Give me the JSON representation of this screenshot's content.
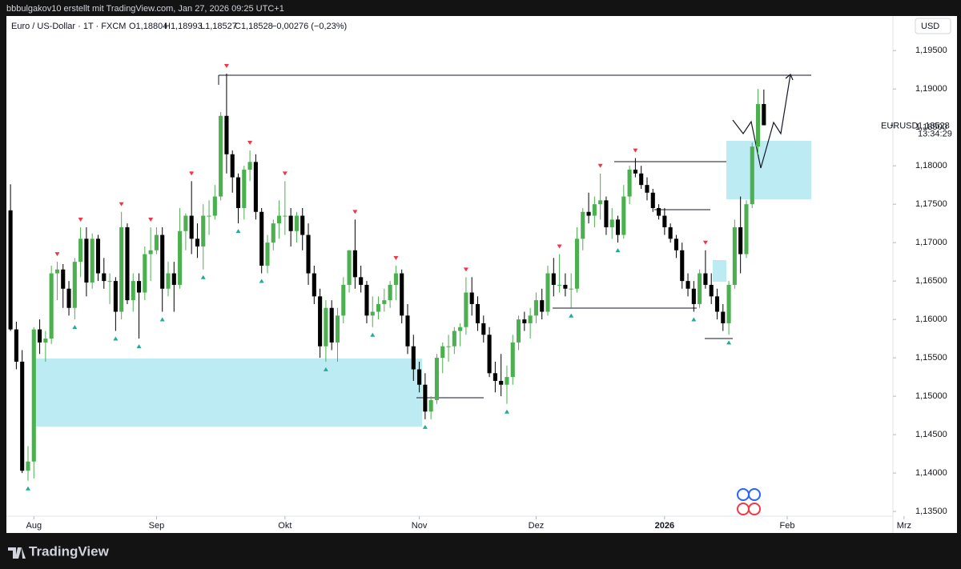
{
  "header": {
    "credit": "bbbulgakov10 erstellt mit TradingView.com, Jan 27, 2026 09:25 UTC+1",
    "symbol": "Euro / US-Dollar · 1T · FXCM",
    "ohlc": [
      "O1,18804",
      "H1,18993",
      "L1,18527",
      "C1,18528"
    ],
    "change": "−0,00276 (−0,23%)",
    "currency": "USD"
  },
  "price_tag": {
    "symbol": "EURUSD",
    "price": "1,18528",
    "countdown": "13:34:29"
  },
  "footer": {
    "brand": "TradingView"
  },
  "chart_data": {
    "type": "candlestick",
    "up_color": "#4caf50",
    "down_color": "#000000",
    "fractal_high_color": "#f23645",
    "fractal_low_color": "#22ab94",
    "xlim": [
      -0.7,
      151.1
    ],
    "xticks": [
      {
        "value": 4,
        "label": "Aug"
      },
      {
        "value": 25,
        "label": "Sep"
      },
      {
        "value": 47,
        "label": "Okt"
      },
      {
        "value": 70,
        "label": "Nov"
      },
      {
        "value": 90,
        "label": "Dez"
      },
      {
        "value": 112,
        "label": "2026"
      },
      {
        "value": 133,
        "label": "Feb"
      },
      {
        "value": 153,
        "label": "Mrz"
      }
    ],
    "ylim": [
      1.1323,
      1.1995
    ],
    "yticks": [
      {
        "value": 1.135,
        "label": "1,13500"
      },
      {
        "value": 1.14,
        "label": "1,14000"
      },
      {
        "value": 1.145,
        "label": "1,14500"
      },
      {
        "value": 1.15,
        "label": "1,15000"
      },
      {
        "value": 1.155,
        "label": "1,15500"
      },
      {
        "value": 1.16,
        "label": "1,16000"
      },
      {
        "value": 1.165,
        "label": "1,16500"
      },
      {
        "value": 1.17,
        "label": "1,17000"
      },
      {
        "value": 1.175,
        "label": "1,17500"
      },
      {
        "value": 1.18,
        "label": "1,18000"
      },
      {
        "value": 1.185,
        "label": "1,18500"
      },
      {
        "value": 1.19,
        "label": "1,19000"
      },
      {
        "value": 1.195,
        "label": "1,19500"
      }
    ],
    "open": [
      1.1742,
      1.1587,
      1.1545,
      1.1403,
      1.1415,
      1.1587,
      1.157,
      1.1575,
      1.166,
      1.1665,
      1.164,
      1.1615,
      1.1675,
      1.1705,
      1.1648,
      1.1705,
      1.166,
      1.165,
      1.165,
      1.161,
      1.172,
      1.1625,
      1.165,
      1.1635,
      1.1685,
      1.169,
      1.171,
      1.164,
      1.166,
      1.1645,
      1.1715,
      1.1735,
      1.1705,
      1.1695,
      1.1735,
      1.1735,
      1.176,
      1.1865,
      1.1815,
      1.1785,
      1.1745,
      1.1795,
      1.1805,
      1.174,
      1.167,
      1.17,
      1.1725,
      1.1735,
      1.1735,
      1.1715,
      1.1735,
      1.171,
      1.166,
      1.163,
      1.1565,
      1.1615,
      1.157,
      1.1605,
      1.1645,
      1.169,
      1.1655,
      1.1645,
      1.1605,
      1.161,
      1.162,
      1.1625,
      1.1645,
      1.166,
      1.1605,
      1.1565,
      1.1535,
      1.1515,
      1.148,
      1.1495,
      1.155,
      1.1565,
      1.1565,
      1.1585,
      1.159,
      1.1635,
      1.162,
      1.1595,
      1.158,
      1.153,
      1.152,
      1.1515,
      1.1525,
      1.157,
      1.16,
      1.1595,
      1.1605,
      1.1625,
      1.161,
      1.166,
      1.1645,
      1.1645,
      1.164,
      1.164,
      1.1705,
      1.174,
      1.1735,
      1.175,
      1.1755,
      1.172,
      1.173,
      1.171,
      1.176,
      1.1795,
      1.179,
      1.1775,
      1.1765,
      1.1745,
      1.1735,
      1.172,
      1.1705,
      1.169,
      1.165,
      1.164,
      1.162,
      1.166,
      1.1645,
      1.163,
      1.161,
      1.1595,
      1.1645,
      1.172,
      1.1685,
      1.175,
      1.1825,
      1.18804
    ],
    "high": [
      1.1776,
      1.1597,
      1.156,
      1.1435,
      1.159,
      1.16,
      1.1585,
      1.167,
      1.1675,
      1.1672,
      1.165,
      1.168,
      1.172,
      1.172,
      1.1712,
      1.171,
      1.168,
      1.166,
      1.1655,
      1.174,
      1.1725,
      1.166,
      1.166,
      1.1695,
      1.172,
      1.172,
      1.172,
      1.1675,
      1.1675,
      1.1745,
      1.1738,
      1.178,
      1.1725,
      1.175,
      1.1755,
      1.1775,
      1.187,
      1.192,
      1.182,
      1.179,
      1.18,
      1.182,
      1.1815,
      1.1745,
      1.171,
      1.173,
      1.1755,
      1.178,
      1.1745,
      1.174,
      1.1745,
      1.1725,
      1.167,
      1.164,
      1.1625,
      1.1625,
      1.1615,
      1.1655,
      1.169,
      1.173,
      1.167,
      1.165,
      1.163,
      1.163,
      1.164,
      1.165,
      1.167,
      1.1665,
      1.162,
      1.158,
      1.1545,
      1.153,
      1.15,
      1.1555,
      1.157,
      1.158,
      1.159,
      1.1595,
      1.1655,
      1.1655,
      1.163,
      1.1605,
      1.159,
      1.1545,
      1.1555,
      1.154,
      1.158,
      1.1605,
      1.161,
      1.1615,
      1.1635,
      1.164,
      1.167,
      1.168,
      1.1685,
      1.166,
      1.166,
      1.172,
      1.1745,
      1.1765,
      1.176,
      1.179,
      1.176,
      1.1745,
      1.1735,
      1.1775,
      1.18,
      1.181,
      1.18,
      1.1785,
      1.177,
      1.175,
      1.1745,
      1.1725,
      1.171,
      1.17,
      1.166,
      1.165,
      1.1665,
      1.169,
      1.166,
      1.164,
      1.162,
      1.165,
      1.173,
      1.176,
      1.1755,
      1.183,
      1.19,
      1.18993
    ],
    "low": [
      1.1585,
      1.1535,
      1.14,
      1.139,
      1.1393,
      1.1555,
      1.1545,
      1.1568,
      1.1625,
      1.1615,
      1.1605,
      1.16,
      1.1655,
      1.163,
      1.164,
      1.165,
      1.164,
      1.162,
      1.1585,
      1.16,
      1.162,
      1.161,
      1.1575,
      1.1625,
      1.165,
      1.1685,
      1.161,
      1.163,
      1.161,
      1.164,
      1.169,
      1.1685,
      1.168,
      1.1665,
      1.171,
      1.173,
      1.1755,
      1.179,
      1.1765,
      1.1725,
      1.173,
      1.178,
      1.173,
      1.166,
      1.166,
      1.169,
      1.1705,
      1.171,
      1.1695,
      1.17,
      1.169,
      1.1645,
      1.162,
      1.155,
      1.1545,
      1.156,
      1.1545,
      1.1595,
      1.1635,
      1.164,
      1.1635,
      1.1595,
      1.159,
      1.16,
      1.161,
      1.1615,
      1.1625,
      1.1595,
      1.1555,
      1.152,
      1.1505,
      1.147,
      1.147,
      1.149,
      1.153,
      1.1545,
      1.1555,
      1.1565,
      1.158,
      1.1605,
      1.1585,
      1.157,
      1.1525,
      1.1505,
      1.15,
      1.149,
      1.1515,
      1.156,
      1.1585,
      1.1575,
      1.1595,
      1.16,
      1.1605,
      1.163,
      1.1635,
      1.163,
      1.1615,
      1.1635,
      1.169,
      1.1725,
      1.172,
      1.173,
      1.171,
      1.1705,
      1.17,
      1.1705,
      1.175,
      1.1785,
      1.177,
      1.1755,
      1.174,
      1.173,
      1.171,
      1.17,
      1.168,
      1.164,
      1.163,
      1.161,
      1.1615,
      1.164,
      1.162,
      1.16,
      1.1585,
      1.158,
      1.164,
      1.166,
      1.168,
      1.1745,
      1.1815,
      1.18527
    ],
    "close": [
      1.1587,
      1.1545,
      1.1403,
      1.1415,
      1.1587,
      1.157,
      1.1575,
      1.166,
      1.1665,
      1.164,
      1.1615,
      1.1675,
      1.1705,
      1.1648,
      1.1705,
      1.166,
      1.165,
      1.165,
      1.161,
      1.172,
      1.1625,
      1.165,
      1.1635,
      1.1685,
      1.169,
      1.171,
      1.164,
      1.166,
      1.1645,
      1.1715,
      1.1735,
      1.1705,
      1.1695,
      1.1735,
      1.1735,
      1.176,
      1.1865,
      1.1815,
      1.1785,
      1.1745,
      1.1795,
      1.1805,
      1.174,
      1.167,
      1.17,
      1.1725,
      1.1735,
      1.1735,
      1.1715,
      1.1735,
      1.171,
      1.166,
      1.163,
      1.1565,
      1.1615,
      1.157,
      1.1605,
      1.1645,
      1.169,
      1.1655,
      1.1645,
      1.1605,
      1.161,
      1.162,
      1.1625,
      1.1645,
      1.166,
      1.1605,
      1.1565,
      1.1535,
      1.1515,
      1.148,
      1.1495,
      1.155,
      1.1565,
      1.1565,
      1.1585,
      1.159,
      1.1635,
      1.162,
      1.1595,
      1.158,
      1.153,
      1.152,
      1.1515,
      1.1525,
      1.157,
      1.16,
      1.1595,
      1.1605,
      1.1625,
      1.161,
      1.166,
      1.1645,
      1.1645,
      1.164,
      1.164,
      1.1705,
      1.174,
      1.1735,
      1.175,
      1.1755,
      1.172,
      1.173,
      1.171,
      1.176,
      1.1795,
      1.179,
      1.1775,
      1.1765,
      1.1745,
      1.1735,
      1.172,
      1.1705,
      1.169,
      1.165,
      1.164,
      1.162,
      1.166,
      1.1645,
      1.163,
      1.161,
      1.1595,
      1.1645,
      1.172,
      1.1685,
      1.175,
      1.1825,
      1.18804,
      1.18528
    ]
  }
}
